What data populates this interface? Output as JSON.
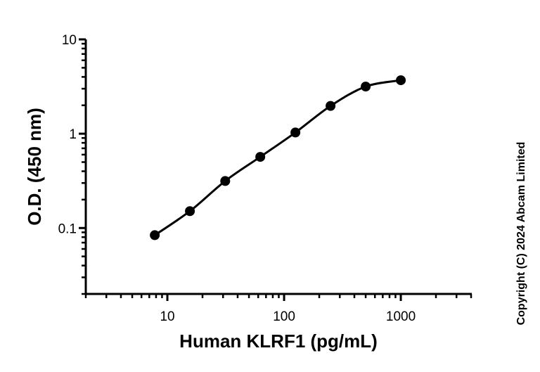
{
  "chart_data": {
    "type": "scatter",
    "title": "",
    "xlabel": "Human KLRF1 (pg/mL)",
    "ylabel": "O.D. (450 nm)",
    "xscale": "log",
    "yscale": "log",
    "xlim": [
      2,
      4000
    ],
    "ylim": [
      0.02,
      10
    ],
    "x_ticks": [
      10,
      100,
      1000
    ],
    "x_tick_labels": [
      "10",
      "100",
      "1000"
    ],
    "y_ticks": [
      0.1,
      1,
      10
    ],
    "y_tick_labels": [
      "0.1",
      "1",
      "10"
    ],
    "grid": false,
    "legend": null,
    "series": [
      {
        "name": "Standard curve",
        "marker": "filled-circle",
        "color": "#000000",
        "fit_line": true,
        "x": [
          7.8,
          15.6,
          31.3,
          62.5,
          125,
          250,
          500,
          1000
        ],
        "y": [
          0.084,
          0.151,
          0.315,
          0.568,
          1.03,
          1.97,
          3.16,
          3.69
        ]
      }
    ],
    "annotations": [
      "Copyright (C) 2024 Abcam Limited"
    ]
  },
  "labels": {
    "xlabel": "Human KLRF1 (pg/mL)",
    "ylabel": "O.D. (450 nm)",
    "copyright": "Copyright (C) 2024 Abcam Limited"
  }
}
